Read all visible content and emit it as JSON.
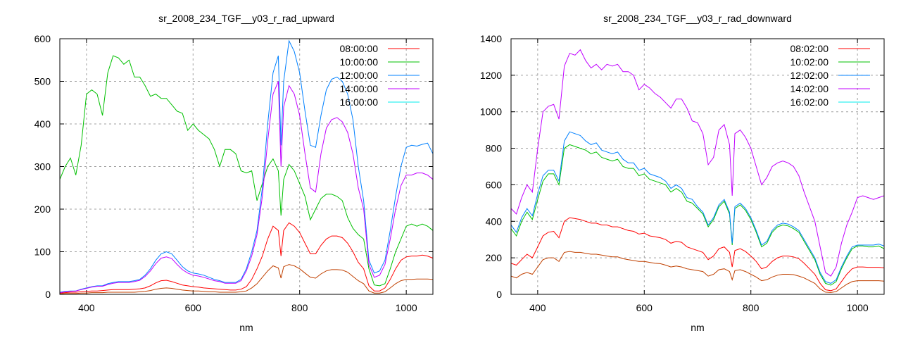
{
  "chart_data": [
    {
      "type": "line",
      "title": "sr_2008_234_TGF__y03_r_rad_upward",
      "xlabel": "nm",
      "ylabel": "",
      "xlim": [
        350,
        1050
      ],
      "ylim": [
        0,
        600
      ],
      "xticks": [
        400,
        600,
        800,
        1000
      ],
      "yticks": [
        0,
        100,
        200,
        300,
        400,
        500,
        600
      ],
      "grid": true,
      "legend_position": "top-right",
      "x": [
        350,
        360,
        370,
        380,
        390,
        400,
        410,
        420,
        430,
        440,
        450,
        460,
        470,
        480,
        490,
        500,
        510,
        520,
        530,
        540,
        550,
        560,
        570,
        580,
        590,
        600,
        610,
        620,
        630,
        640,
        650,
        660,
        670,
        680,
        690,
        700,
        710,
        720,
        730,
        740,
        750,
        760,
        765,
        770,
        780,
        790,
        800,
        810,
        820,
        830,
        840,
        850,
        860,
        870,
        880,
        890,
        900,
        910,
        920,
        930,
        940,
        950,
        960,
        970,
        980,
        990,
        1000,
        1010,
        1020,
        1030,
        1040,
        1050
      ],
      "series": [
        {
          "name": "08:00:00",
          "legend_color": "#ff0000",
          "color": "#ff0000",
          "values": [
            3,
            4,
            5,
            5,
            6,
            7,
            8,
            8,
            9,
            10,
            11,
            11,
            11,
            11,
            12,
            13,
            15,
            20,
            27,
            32,
            33,
            30,
            26,
            22,
            20,
            18,
            17,
            15,
            14,
            13,
            12,
            11,
            10,
            10,
            12,
            18,
            35,
            60,
            90,
            130,
            160,
            150,
            90,
            150,
            168,
            160,
            145,
            120,
            95,
            95,
            115,
            130,
            137,
            137,
            133,
            120,
            100,
            75,
            60,
            20,
            8,
            8,
            15,
            35,
            60,
            80,
            88,
            90,
            90,
            92,
            90,
            85
          ]
        },
        {
          "name": "10:00:00",
          "legend_color": "#00c000",
          "color": "#00c000",
          "values": [
            270,
            300,
            320,
            280,
            350,
            470,
            480,
            470,
            420,
            520,
            560,
            555,
            540,
            550,
            510,
            510,
            490,
            465,
            470,
            460,
            460,
            445,
            430,
            425,
            385,
            400,
            385,
            375,
            365,
            340,
            300,
            340,
            340,
            330,
            290,
            285,
            290,
            220,
            260,
            300,
            318,
            290,
            185,
            270,
            305,
            290,
            260,
            230,
            175,
            200,
            225,
            235,
            235,
            230,
            220,
            180,
            155,
            140,
            130,
            60,
            22,
            20,
            25,
            60,
            100,
            130,
            160,
            165,
            160,
            165,
            160,
            150
          ]
        },
        {
          "name": "12:00:00",
          "legend_color": "#0080ff",
          "color": "#0080ff",
          "values": [
            5,
            7,
            8,
            8,
            12,
            15,
            18,
            20,
            20,
            25,
            28,
            30,
            30,
            30,
            32,
            35,
            45,
            60,
            80,
            95,
            100,
            95,
            80,
            65,
            55,
            50,
            48,
            45,
            40,
            35,
            32,
            28,
            28,
            28,
            35,
            60,
            100,
            150,
            250,
            400,
            520,
            560,
            350,
            500,
            595,
            570,
            520,
            430,
            350,
            345,
            420,
            480,
            505,
            510,
            500,
            470,
            410,
            300,
            220,
            80,
            50,
            55,
            80,
            150,
            230,
            300,
            345,
            350,
            348,
            352,
            355,
            330
          ]
        },
        {
          "name": "14:00:00",
          "legend_color": "#c000ff",
          "color": "#c000ff",
          "values": [
            4,
            6,
            7,
            8,
            11,
            14,
            17,
            19,
            19,
            23,
            26,
            28,
            28,
            28,
            30,
            33,
            42,
            55,
            72,
            85,
            88,
            84,
            70,
            58,
            50,
            45,
            43,
            40,
            36,
            32,
            30,
            26,
            26,
            26,
            32,
            55,
            90,
            140,
            230,
            360,
            470,
            500,
            300,
            440,
            490,
            470,
            420,
            330,
            250,
            240,
            330,
            390,
            410,
            415,
            405,
            380,
            330,
            250,
            200,
            70,
            40,
            45,
            70,
            130,
            200,
            255,
            280,
            280,
            285,
            285,
            280,
            270
          ]
        },
        {
          "name": "16:00:00",
          "legend_color": "#00eeee",
          "color": "#c04000",
          "values": [
            1,
            2,
            2,
            2,
            3,
            3,
            4,
            4,
            4,
            5,
            5,
            5,
            5,
            5,
            5,
            6,
            7,
            9,
            12,
            14,
            15,
            14,
            12,
            10,
            9,
            8,
            8,
            7,
            6,
            6,
            5,
            5,
            5,
            5,
            6,
            8,
            15,
            25,
            40,
            55,
            67,
            62,
            38,
            65,
            70,
            67,
            60,
            50,
            40,
            38,
            48,
            55,
            58,
            58,
            57,
            52,
            42,
            32,
            25,
            8,
            3,
            3,
            6,
            15,
            25,
            32,
            35,
            35,
            36,
            36,
            36,
            35
          ]
        }
      ]
    },
    {
      "type": "line",
      "title": "sr_2008_234_TGF__y03_r_rad_downward",
      "xlabel": "nm",
      "ylabel": "",
      "xlim": [
        350,
        1050
      ],
      "ylim": [
        0,
        1400
      ],
      "xticks": [
        400,
        600,
        800,
        1000
      ],
      "yticks": [
        0,
        200,
        400,
        600,
        800,
        1000,
        1200,
        1400
      ],
      "grid": true,
      "legend_position": "top-right",
      "x": [
        350,
        360,
        370,
        380,
        390,
        400,
        410,
        420,
        430,
        440,
        450,
        460,
        470,
        480,
        490,
        500,
        510,
        520,
        530,
        540,
        550,
        560,
        570,
        580,
        590,
        600,
        610,
        620,
        630,
        640,
        650,
        660,
        670,
        680,
        690,
        700,
        710,
        720,
        730,
        740,
        750,
        760,
        765,
        770,
        780,
        790,
        800,
        810,
        820,
        830,
        840,
        850,
        860,
        870,
        880,
        890,
        900,
        910,
        920,
        930,
        940,
        950,
        960,
        970,
        980,
        990,
        1000,
        1010,
        1020,
        1030,
        1040,
        1050
      ],
      "series": [
        {
          "name": "08:02:00",
          "legend_color": "#ff0000",
          "color": "#ff0000",
          "values": [
            170,
            160,
            190,
            220,
            200,
            260,
            320,
            340,
            345,
            310,
            400,
            420,
            415,
            410,
            400,
            390,
            390,
            380,
            380,
            370,
            370,
            360,
            350,
            345,
            330,
            335,
            320,
            315,
            310,
            300,
            280,
            290,
            285,
            260,
            250,
            240,
            230,
            190,
            210,
            250,
            260,
            230,
            150,
            240,
            250,
            235,
            210,
            180,
            140,
            150,
            180,
            200,
            210,
            210,
            205,
            195,
            170,
            140,
            110,
            60,
            25,
            20,
            30,
            70,
            110,
            140,
            150,
            150,
            148,
            148,
            148,
            145
          ]
        },
        {
          "name": "10:02:00",
          "legend_color": "#00c000",
          "color": "#00c000",
          "values": [
            360,
            320,
            400,
            450,
            410,
            520,
            620,
            660,
            660,
            600,
            800,
            820,
            810,
            800,
            790,
            770,
            780,
            750,
            740,
            730,
            740,
            700,
            690,
            690,
            650,
            660,
            630,
            620,
            610,
            600,
            560,
            580,
            560,
            510,
            500,
            470,
            440,
            370,
            410,
            480,
            510,
            440,
            270,
            470,
            490,
            460,
            410,
            340,
            260,
            280,
            340,
            370,
            380,
            375,
            360,
            340,
            290,
            240,
            190,
            110,
            60,
            50,
            70,
            140,
            200,
            250,
            265,
            265,
            260,
            260,
            265,
            250
          ]
        },
        {
          "name": "12:02:00",
          "legend_color": "#0080ff",
          "color": "#0080ff",
          "values": [
            380,
            340,
            420,
            470,
            430,
            550,
            650,
            680,
            680,
            620,
            840,
            890,
            880,
            870,
            840,
            820,
            830,
            790,
            780,
            770,
            780,
            740,
            720,
            720,
            680,
            690,
            660,
            650,
            640,
            620,
            580,
            600,
            580,
            530,
            520,
            480,
            450,
            380,
            420,
            490,
            520,
            450,
            280,
            480,
            500,
            470,
            420,
            350,
            270,
            290,
            350,
            380,
            390,
            385,
            370,
            350,
            300,
            250,
            200,
            120,
            70,
            60,
            80,
            150,
            210,
            260,
            270,
            270,
            270,
            270,
            275,
            265
          ]
        },
        {
          "name": "14:02:00",
          "legend_color": "#c000ff",
          "color": "#c000ff",
          "values": [
            470,
            440,
            530,
            600,
            560,
            800,
            1000,
            1030,
            1040,
            960,
            1250,
            1320,
            1310,
            1340,
            1280,
            1240,
            1260,
            1230,
            1260,
            1250,
            1260,
            1220,
            1220,
            1200,
            1120,
            1150,
            1130,
            1100,
            1080,
            1050,
            1020,
            1070,
            1070,
            1020,
            950,
            940,
            880,
            710,
            750,
            900,
            930,
            820,
            540,
            880,
            900,
            860,
            800,
            700,
            600,
            640,
            700,
            720,
            730,
            720,
            700,
            650,
            560,
            480,
            400,
            260,
            120,
            100,
            150,
            280,
            380,
            450,
            530,
            540,
            530,
            520,
            530,
            540
          ]
        },
        {
          "name": "16:02:00",
          "legend_color": "#00eeee",
          "color": "#c04000",
          "values": [
            100,
            90,
            110,
            120,
            110,
            150,
            190,
            200,
            200,
            180,
            230,
            235,
            230,
            230,
            225,
            220,
            220,
            215,
            210,
            205,
            205,
            195,
            190,
            185,
            180,
            180,
            175,
            170,
            168,
            160,
            150,
            155,
            150,
            140,
            135,
            130,
            125,
            100,
            110,
            135,
            140,
            125,
            80,
            130,
            135,
            125,
            110,
            95,
            75,
            80,
            95,
            105,
            110,
            110,
            108,
            100,
            90,
            75,
            60,
            30,
            12,
            10,
            15,
            35,
            55,
            70,
            75,
            75,
            75,
            75,
            75,
            72
          ]
        }
      ]
    }
  ]
}
